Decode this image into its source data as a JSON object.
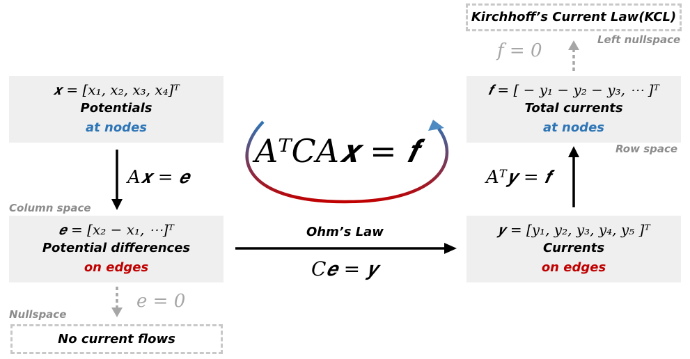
{
  "left_top": {
    "formula": "𝒙 = [x₁, x₂, x₃, x₄]ᵀ",
    "title": "Potentials",
    "subtitle": "at nodes"
  },
  "left_arrow_eq": "A𝒙 = 𝒆",
  "column_space": "Column space",
  "left_bottom": {
    "formula": "𝒆 = [x₂ − x₁, ⋯]ᵀ",
    "title": "Potential differences",
    "subtitle": "on edges"
  },
  "nullspace_eq": "e = 0",
  "nullspace": "Nullspace",
  "no_current": "No current flows",
  "central_eq": "AᵀCA𝒙 = 𝒇",
  "ohms_law": "Ohm’s Law",
  "ohms_eq": "C𝒆 = 𝒚",
  "right_bottom": {
    "formula": "𝒚 = [y₁, y₂, y₃, y₄, y₅ ]ᵀ",
    "title": "Currents",
    "subtitle": "on edges"
  },
  "right_arrow_eq": "Aᵀ𝒚 = 𝒇",
  "row_space": "Row space",
  "right_top": {
    "formula": "𝒇 = [ − y₁ − y₂ − y₃, ⋯ ]ᵀ",
    "title": "Total currents",
    "subtitle": "at nodes"
  },
  "left_nullspace_eq": "f = 0",
  "left_nullspace": "Left nullspace",
  "kcl": "Kirchhoff’s Current Law(KCL)",
  "colors": {
    "box_bg": "#efefef",
    "blue": "#2e75b6",
    "red": "#c00000",
    "grey": "#8c8c8c"
  }
}
